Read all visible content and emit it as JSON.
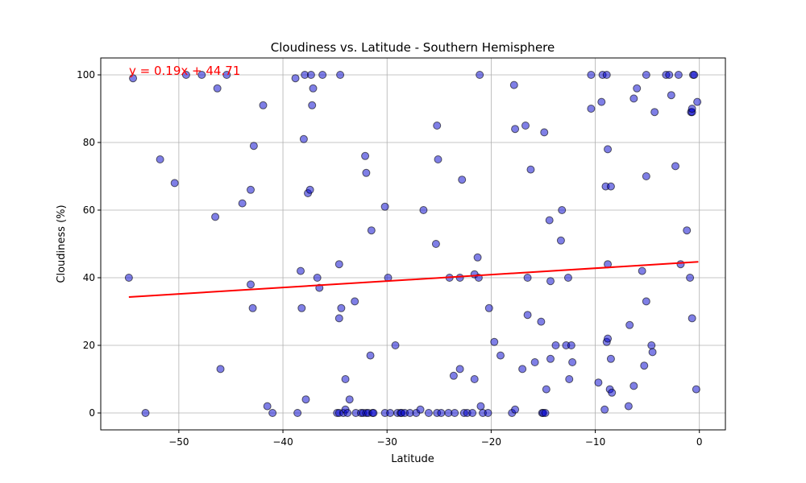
{
  "chart_data": {
    "type": "scatter",
    "title": "Cloudiness vs. Latitude - Southern Hemisphere",
    "xlabel": "Latitude",
    "ylabel": "Cloudiness (%)",
    "xlim": [
      -57.5,
      2.5
    ],
    "ylim": [
      -5,
      105
    ],
    "xticks": [
      -50,
      -40,
      -30,
      -20,
      -10,
      0
    ],
    "yticks": [
      0,
      20,
      40,
      60,
      80,
      100
    ],
    "grid": true,
    "point_color": "#0000cd",
    "regression": {
      "equation": "y = 0.19x + 44.71",
      "slope": 0.19,
      "intercept": 44.71,
      "x_range": [
        -54.8,
        -0.1
      ],
      "color": "#ff0000"
    },
    "points": [
      [
        -54.8,
        40
      ],
      [
        -54.4,
        99
      ],
      [
        -53.2,
        0
      ],
      [
        -51.8,
        75
      ],
      [
        -50.4,
        68
      ],
      [
        -49.3,
        100
      ],
      [
        -47.8,
        100
      ],
      [
        -46.5,
        58
      ],
      [
        -46.3,
        96
      ],
      [
        -46.0,
        13
      ],
      [
        -45.4,
        100
      ],
      [
        -43.9,
        62
      ],
      [
        -43.1,
        66
      ],
      [
        -43.1,
        38
      ],
      [
        -42.9,
        31
      ],
      [
        -42.8,
        79
      ],
      [
        -41.9,
        91
      ],
      [
        -41.5,
        2
      ],
      [
        -41.0,
        0
      ],
      [
        -38.8,
        99
      ],
      [
        -38.6,
        0
      ],
      [
        -38.3,
        42
      ],
      [
        -38.2,
        31
      ],
      [
        -38.0,
        81
      ],
      [
        -37.9,
        100
      ],
      [
        -37.8,
        4
      ],
      [
        -37.6,
        65
      ],
      [
        -37.4,
        66
      ],
      [
        -37.3,
        100
      ],
      [
        -37.2,
        91
      ],
      [
        -37.1,
        96
      ],
      [
        -36.7,
        40
      ],
      [
        -36.5,
        37
      ],
      [
        -36.2,
        100
      ],
      [
        -34.8,
        0
      ],
      [
        -34.6,
        44
      ],
      [
        -34.6,
        0
      ],
      [
        -34.6,
        28
      ],
      [
        -34.5,
        100
      ],
      [
        -34.4,
        31
      ],
      [
        -34.2,
        0
      ],
      [
        -34.0,
        10
      ],
      [
        -34.0,
        1
      ],
      [
        -33.8,
        0
      ],
      [
        -33.6,
        4
      ],
      [
        -33.1,
        33
      ],
      [
        -33.0,
        0
      ],
      [
        -32.5,
        0
      ],
      [
        -32.3,
        0
      ],
      [
        -32.1,
        76
      ],
      [
        -32.0,
        71
      ],
      [
        -32.0,
        0
      ],
      [
        -31.8,
        0
      ],
      [
        -31.6,
        17
      ],
      [
        -31.5,
        54
      ],
      [
        -31.4,
        0
      ],
      [
        -31.3,
        0
      ],
      [
        -30.2,
        61
      ],
      [
        -30.2,
        0
      ],
      [
        -29.9,
        40
      ],
      [
        -29.7,
        0
      ],
      [
        -29.2,
        20
      ],
      [
        -29.0,
        0
      ],
      [
        -28.7,
        0
      ],
      [
        -28.6,
        0
      ],
      [
        -28.3,
        0
      ],
      [
        -27.8,
        0
      ],
      [
        -27.2,
        0
      ],
      [
        -26.8,
        1
      ],
      [
        -26.5,
        60
      ],
      [
        -26.0,
        0
      ],
      [
        -25.3,
        50
      ],
      [
        -25.2,
        0
      ],
      [
        -25.2,
        85
      ],
      [
        -25.1,
        75
      ],
      [
        -24.8,
        0
      ],
      [
        -24.1,
        0
      ],
      [
        -24.0,
        40
      ],
      [
        -23.6,
        11
      ],
      [
        -23.5,
        0
      ],
      [
        -23.0,
        13
      ],
      [
        -23.0,
        40
      ],
      [
        -22.8,
        69
      ],
      [
        -22.6,
        0
      ],
      [
        -22.3,
        0
      ],
      [
        -21.8,
        0
      ],
      [
        -21.6,
        41
      ],
      [
        -21.6,
        10
      ],
      [
        -21.3,
        46
      ],
      [
        -21.2,
        40
      ],
      [
        -21.1,
        100
      ],
      [
        -21.0,
        2
      ],
      [
        -20.8,
        0
      ],
      [
        -20.3,
        0
      ],
      [
        -20.2,
        31
      ],
      [
        -19.7,
        21
      ],
      [
        -19.1,
        17
      ],
      [
        -18.0,
        0
      ],
      [
        -17.8,
        97
      ],
      [
        -17.7,
        84
      ],
      [
        -17.7,
        1
      ],
      [
        -17.0,
        13
      ],
      [
        -16.7,
        85
      ],
      [
        -16.5,
        29
      ],
      [
        -16.5,
        40
      ],
      [
        -16.2,
        72
      ],
      [
        -15.8,
        15
      ],
      [
        -15.2,
        27
      ],
      [
        -15.1,
        0
      ],
      [
        -15.0,
        0
      ],
      [
        -14.9,
        83
      ],
      [
        -14.8,
        0
      ],
      [
        -14.7,
        7
      ],
      [
        -14.4,
        57
      ],
      [
        -14.3,
        39
      ],
      [
        -14.3,
        16
      ],
      [
        -13.8,
        20
      ],
      [
        -13.3,
        51
      ],
      [
        -13.2,
        60
      ],
      [
        -12.8,
        20
      ],
      [
        -12.6,
        40
      ],
      [
        -12.5,
        10
      ],
      [
        -12.3,
        20
      ],
      [
        -12.2,
        15
      ],
      [
        -10.4,
        90
      ],
      [
        -10.4,
        100
      ],
      [
        -9.7,
        9
      ],
      [
        -9.4,
        92
      ],
      [
        -9.3,
        100
      ],
      [
        -9.1,
        1
      ],
      [
        -9.0,
        67
      ],
      [
        -8.9,
        100
      ],
      [
        -8.9,
        21
      ],
      [
        -8.8,
        44
      ],
      [
        -8.8,
        22
      ],
      [
        -8.8,
        78
      ],
      [
        -8.6,
        7
      ],
      [
        -8.5,
        16
      ],
      [
        -8.5,
        67
      ],
      [
        -8.4,
        6
      ],
      [
        -6.8,
        2
      ],
      [
        -6.7,
        26
      ],
      [
        -6.3,
        93
      ],
      [
        -6.3,
        8
      ],
      [
        -6.0,
        96
      ],
      [
        -5.5,
        42
      ],
      [
        -5.3,
        14
      ],
      [
        -5.1,
        70
      ],
      [
        -5.1,
        100
      ],
      [
        -5.1,
        33
      ],
      [
        -4.6,
        20
      ],
      [
        -4.5,
        18
      ],
      [
        -4.3,
        89
      ],
      [
        -3.2,
        100
      ],
      [
        -2.9,
        100
      ],
      [
        -2.7,
        94
      ],
      [
        -2.3,
        73
      ],
      [
        -2.0,
        100
      ],
      [
        -1.8,
        44
      ],
      [
        -1.2,
        54
      ],
      [
        -0.9,
        40
      ],
      [
        -0.8,
        89
      ],
      [
        -0.7,
        28
      ],
      [
        -0.7,
        89
      ],
      [
        -0.7,
        90
      ],
      [
        -0.6,
        100
      ],
      [
        -0.5,
        100
      ],
      [
        -0.3,
        7
      ],
      [
        -0.2,
        92
      ]
    ]
  }
}
